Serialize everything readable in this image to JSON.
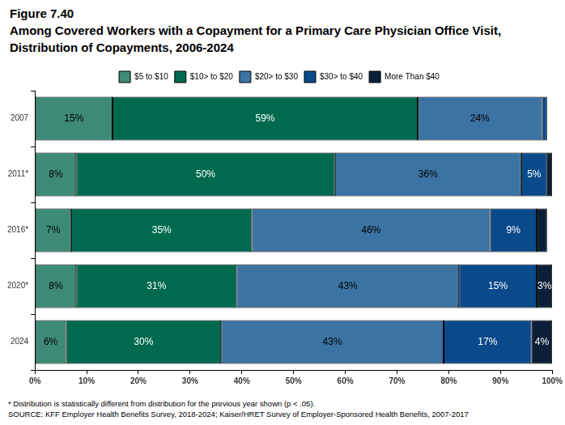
{
  "chart_data": {
    "type": "bar",
    "title": "Figure 7.40",
    "subtitle": "Among Covered Workers with a Copayment for a Primary Care Physician Office Visit, Distribution of Copayments, 2006-2024",
    "notes": [
      "* Distribution is statistically different from distribution for the previous year shown (p < .05).",
      "SOURCE: KFF Employer Health Benefits Survey, 2018-2024; Kaiser/HRET Survey of Employer-Sponsored Health Benefits, 2007-2017"
    ],
    "orientation": "horizontal",
    "stacked": true,
    "data_labels": true,
    "grid": false,
    "legend": "top",
    "categories": [
      "2007",
      "2011*",
      "2016*",
      "2020*",
      "2024"
    ],
    "series": [
      {
        "name": "$5 to $10",
        "color": "#3d8b77",
        "values": [
          15,
          8,
          7,
          8,
          6
        ],
        "value_labels": [
          "15%",
          "8%",
          "7%",
          "8%",
          "6%"
        ]
      },
      {
        "name": "$10> to $20",
        "color": "#006a4e",
        "values": [
          59,
          50,
          35,
          31,
          30
        ],
        "value_labels": [
          "59%",
          "50%",
          "35%",
          "31%",
          "30%"
        ]
      },
      {
        "name": "$20> to $30",
        "color": "#3b73a3",
        "values": [
          24,
          36,
          46,
          43,
          43
        ],
        "value_labels": [
          "24%",
          "36%",
          "46%",
          "43%",
          "43%"
        ]
      },
      {
        "name": "$30> to $40",
        "color": "#0a4a8a",
        "values": [
          1,
          5,
          9,
          15,
          17
        ],
        "value_labels": [
          null,
          "5%",
          "9%",
          "15%",
          "17%"
        ]
      },
      {
        "name": "More Than $40",
        "color": "#0b2038",
        "values": [
          0,
          1,
          2,
          3,
          4
        ],
        "value_labels": [
          null,
          null,
          null,
          "3%",
          "4%"
        ]
      }
    ],
    "xlim": [
      0,
      100
    ],
    "xticks": [
      {
        "value": 0,
        "label": "0%"
      },
      {
        "value": 10,
        "label": "10%"
      },
      {
        "value": 20,
        "label": "20%"
      },
      {
        "value": 30,
        "label": "30%"
      },
      {
        "value": 40,
        "label": "40%"
      },
      {
        "value": 50,
        "label": "50%"
      },
      {
        "value": 60,
        "label": "60%"
      },
      {
        "value": 70,
        "label": "70%"
      },
      {
        "value": 80,
        "label": "80%"
      },
      {
        "value": 90,
        "label": "90%"
      },
      {
        "value": 100,
        "label": "100%"
      }
    ]
  }
}
